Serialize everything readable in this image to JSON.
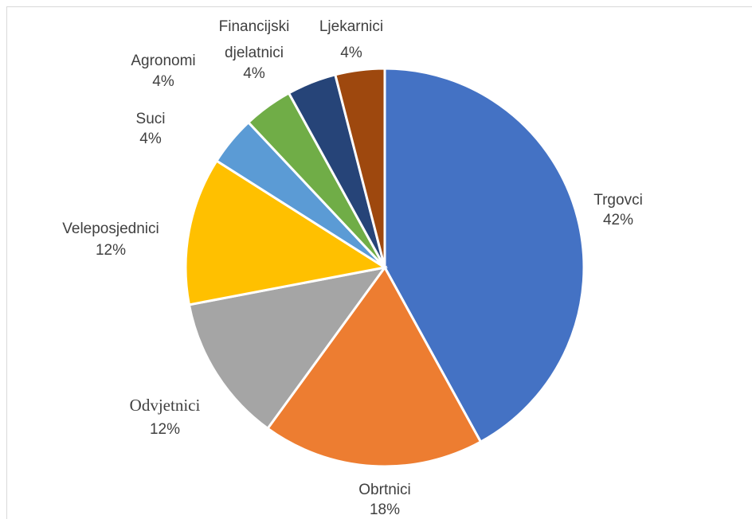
{
  "chart_data": {
    "type": "pie",
    "title": "",
    "start_angle_deg": 0,
    "direction": "clockwise",
    "slices": [
      {
        "label": "Trgovci",
        "value": 42,
        "value_label": "42%",
        "color": "#4472C4"
      },
      {
        "label": "Obrtnici",
        "value": 18,
        "value_label": "18%",
        "color": "#ED7D31"
      },
      {
        "label": "Odvjetnici",
        "value": 12,
        "value_label": "12%",
        "color": "#A5A5A5"
      },
      {
        "label": "Veleposjednici",
        "value": 12,
        "value_label": "12%",
        "color": "#FFC000"
      },
      {
        "label": "Suci",
        "value": 4,
        "value_label": "4%",
        "color": "#5B9BD5"
      },
      {
        "label": "Agronomi",
        "value": 4,
        "value_label": "4%",
        "color": "#70AD47"
      },
      {
        "label": "Financijski djelatnici",
        "value": 4,
        "value_label": "4%",
        "color": "#264478"
      },
      {
        "label": "Ljekarnici",
        "value": 4,
        "value_label": "4%",
        "color": "#9E480E"
      }
    ],
    "legend": "none",
    "data_labels": "outside-end"
  }
}
